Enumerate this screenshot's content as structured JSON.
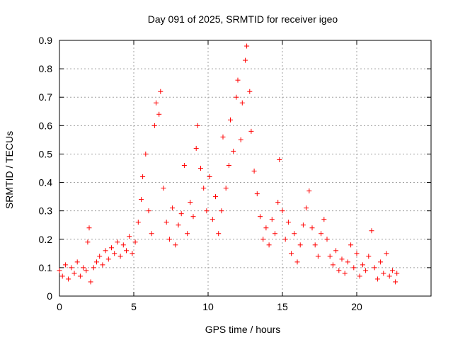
{
  "chart_data": {
    "type": "scatter",
    "title": "Day 091 of 2025, SRMTID for receiver igeo",
    "xlabel": "GPS time / hours",
    "ylabel": "SRMTID / TECUs",
    "xlim": [
      0,
      25
    ],
    "ylim": [
      0,
      0.9
    ],
    "xticks": [
      "0",
      "5",
      "10",
      "15",
      "20"
    ],
    "yticks": [
      "0",
      "0.1",
      "0.2",
      "0.3",
      "0.4",
      "0.5",
      "0.6",
      "0.7",
      "0.8",
      "0.9"
    ],
    "grid": true,
    "marker": "+",
    "color": "#ff0000",
    "series": [
      {
        "name": "SRMTID",
        "points": [
          [
            0.0,
            0.09
          ],
          [
            0.2,
            0.07
          ],
          [
            0.4,
            0.11
          ],
          [
            0.6,
            0.06
          ],
          [
            0.8,
            0.1
          ],
          [
            1.0,
            0.08
          ],
          [
            1.2,
            0.12
          ],
          [
            1.4,
            0.07
          ],
          [
            1.6,
            0.1
          ],
          [
            1.8,
            0.09
          ],
          [
            1.9,
            0.19
          ],
          [
            2.0,
            0.24
          ],
          [
            2.1,
            0.05
          ],
          [
            2.3,
            0.1
          ],
          [
            2.5,
            0.12
          ],
          [
            2.7,
            0.14
          ],
          [
            2.9,
            0.11
          ],
          [
            3.1,
            0.16
          ],
          [
            3.3,
            0.13
          ],
          [
            3.5,
            0.17
          ],
          [
            3.7,
            0.15
          ],
          [
            3.9,
            0.19
          ],
          [
            4.1,
            0.14
          ],
          [
            4.3,
            0.18
          ],
          [
            4.5,
            0.16
          ],
          [
            4.7,
            0.21
          ],
          [
            4.9,
            0.15
          ],
          [
            5.1,
            0.19
          ],
          [
            5.3,
            0.26
          ],
          [
            5.5,
            0.34
          ],
          [
            5.6,
            0.42
          ],
          [
            5.8,
            0.5
          ],
          [
            6.0,
            0.3
          ],
          [
            6.2,
            0.22
          ],
          [
            6.4,
            0.6
          ],
          [
            6.5,
            0.68
          ],
          [
            6.7,
            0.64
          ],
          [
            6.8,
            0.72
          ],
          [
            7.0,
            0.38
          ],
          [
            7.2,
            0.26
          ],
          [
            7.4,
            0.2
          ],
          [
            7.6,
            0.31
          ],
          [
            7.8,
            0.18
          ],
          [
            8.0,
            0.25
          ],
          [
            8.2,
            0.29
          ],
          [
            8.4,
            0.46
          ],
          [
            8.6,
            0.22
          ],
          [
            8.8,
            0.33
          ],
          [
            9.0,
            0.28
          ],
          [
            9.2,
            0.52
          ],
          [
            9.3,
            0.6
          ],
          [
            9.5,
            0.45
          ],
          [
            9.7,
            0.38
          ],
          [
            9.9,
            0.3
          ],
          [
            10.1,
            0.42
          ],
          [
            10.3,
            0.27
          ],
          [
            10.5,
            0.35
          ],
          [
            10.7,
            0.22
          ],
          [
            10.9,
            0.3
          ],
          [
            11.0,
            0.56
          ],
          [
            11.2,
            0.38
          ],
          [
            11.4,
            0.46
          ],
          [
            11.5,
            0.62
          ],
          [
            11.7,
            0.51
          ],
          [
            11.9,
            0.7
          ],
          [
            12.0,
            0.76
          ],
          [
            12.2,
            0.55
          ],
          [
            12.3,
            0.68
          ],
          [
            12.5,
            0.83
          ],
          [
            12.6,
            0.88
          ],
          [
            12.8,
            0.72
          ],
          [
            12.9,
            0.58
          ],
          [
            13.1,
            0.44
          ],
          [
            13.3,
            0.36
          ],
          [
            13.5,
            0.28
          ],
          [
            13.7,
            0.2
          ],
          [
            13.9,
            0.24
          ],
          [
            14.1,
            0.18
          ],
          [
            14.3,
            0.27
          ],
          [
            14.5,
            0.22
          ],
          [
            14.7,
            0.33
          ],
          [
            14.8,
            0.48
          ],
          [
            15.0,
            0.3
          ],
          [
            15.2,
            0.2
          ],
          [
            15.4,
            0.26
          ],
          [
            15.6,
            0.15
          ],
          [
            15.8,
            0.22
          ],
          [
            16.0,
            0.12
          ],
          [
            16.2,
            0.18
          ],
          [
            16.4,
            0.25
          ],
          [
            16.6,
            0.31
          ],
          [
            16.8,
            0.37
          ],
          [
            17.0,
            0.24
          ],
          [
            17.2,
            0.18
          ],
          [
            17.4,
            0.14
          ],
          [
            17.6,
            0.22
          ],
          [
            17.8,
            0.27
          ],
          [
            18.0,
            0.2
          ],
          [
            18.2,
            0.14
          ],
          [
            18.4,
            0.11
          ],
          [
            18.6,
            0.16
          ],
          [
            18.8,
            0.09
          ],
          [
            19.0,
            0.13
          ],
          [
            19.2,
            0.08
          ],
          [
            19.4,
            0.12
          ],
          [
            19.6,
            0.18
          ],
          [
            19.8,
            0.1
          ],
          [
            20.0,
            0.15
          ],
          [
            20.2,
            0.07
          ],
          [
            20.4,
            0.11
          ],
          [
            20.6,
            0.09
          ],
          [
            20.8,
            0.14
          ],
          [
            21.0,
            0.23
          ],
          [
            21.2,
            0.1
          ],
          [
            21.4,
            0.06
          ],
          [
            21.6,
            0.12
          ],
          [
            21.8,
            0.08
          ],
          [
            22.0,
            0.15
          ],
          [
            22.2,
            0.07
          ],
          [
            22.4,
            0.09
          ],
          [
            22.6,
            0.05
          ],
          [
            22.7,
            0.08
          ]
        ]
      }
    ]
  }
}
